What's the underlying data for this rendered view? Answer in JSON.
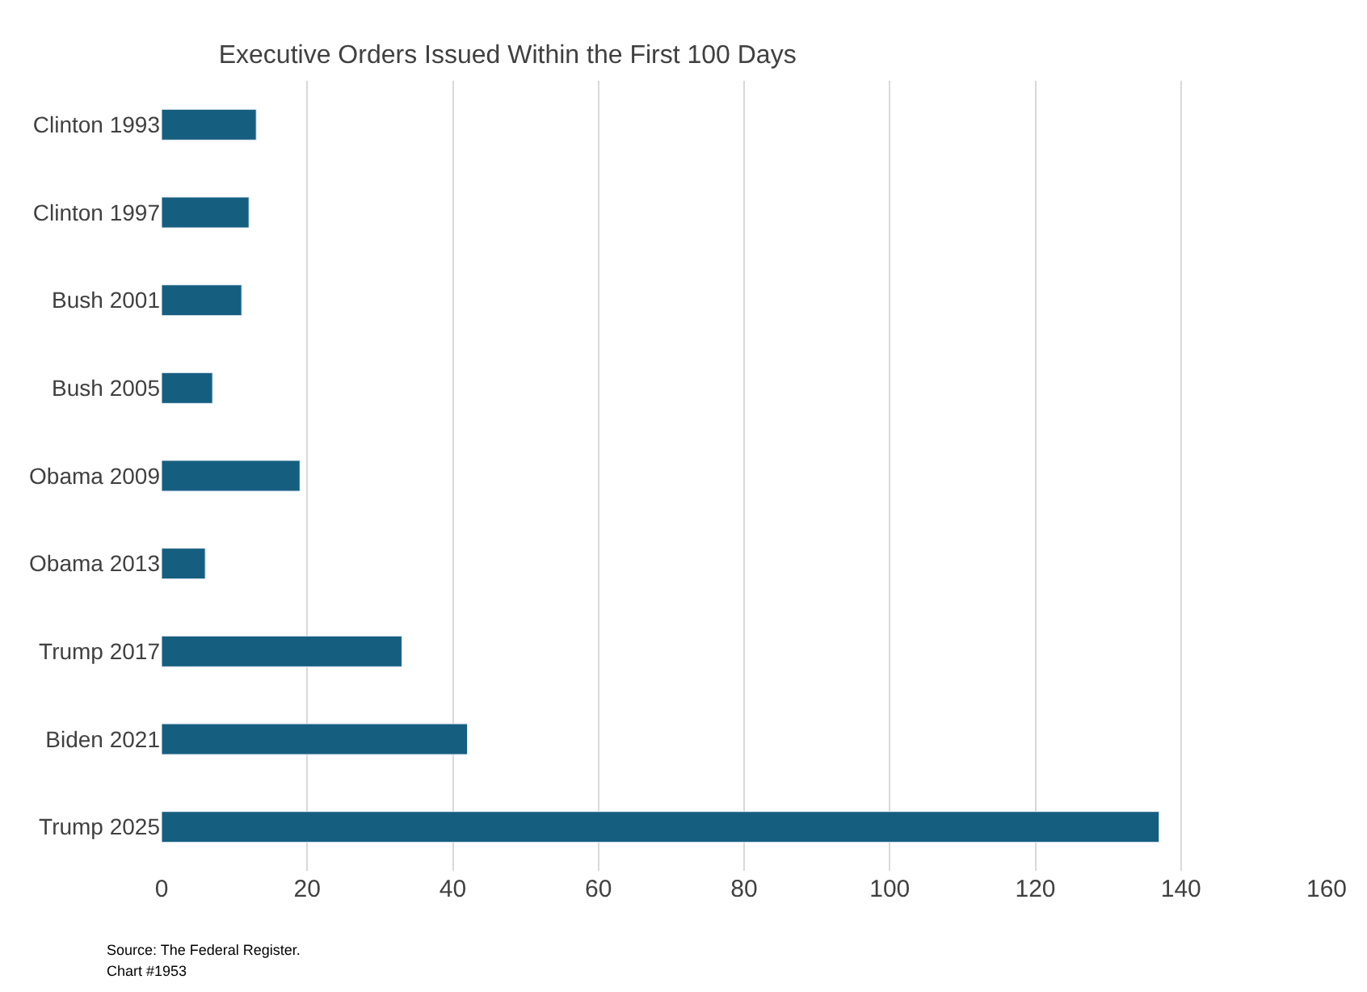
{
  "chart_data": {
    "type": "bar",
    "orientation": "horizontal",
    "title": "Executive Orders Issued Within the First 100 Days",
    "categories": [
      "Clinton 1993",
      "Clinton 1997",
      "Bush 2001",
      "Bush 2005",
      "Obama 2009",
      "Obama 2013",
      "Trump 2017",
      "Biden 2021",
      "Trump 2025"
    ],
    "values": [
      13,
      12,
      11,
      7,
      19,
      6,
      33,
      42,
      137
    ],
    "color": "#165e80",
    "xlim": [
      0,
      160
    ],
    "xticks": [
      0,
      20,
      40,
      60,
      80,
      100,
      120,
      140,
      160
    ],
    "grid": "x",
    "annotations": [
      "Source: The Federal Register.",
      "Chart #1953"
    ]
  }
}
